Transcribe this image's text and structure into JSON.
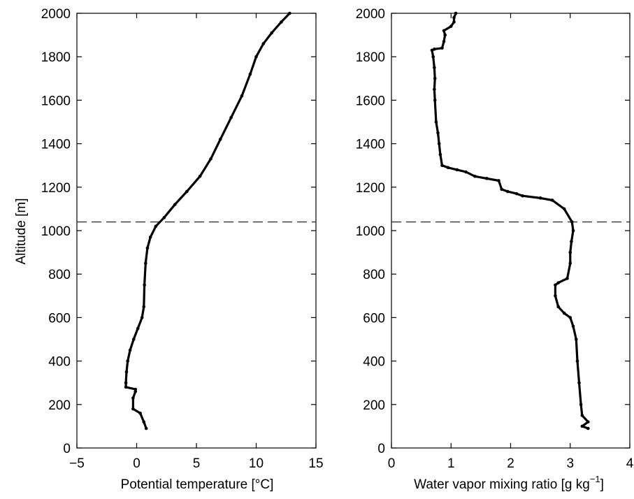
{
  "chart_data": [
    {
      "type": "line",
      "xlabel": "Potential temperature [°C]",
      "ylabel": "Altitude [m]",
      "xlim": [
        -5,
        15
      ],
      "ylim": [
        0,
        2000
      ],
      "xticks": [
        -5,
        0,
        5,
        10,
        15
      ],
      "yticks": [
        0,
        200,
        400,
        600,
        800,
        1000,
        1200,
        1400,
        1600,
        1800,
        2000
      ],
      "xtick_labels": [
        "−5",
        "0",
        "5",
        "10",
        "15"
      ],
      "ytick_labels": [
        "0",
        "200",
        "400",
        "600",
        "800",
        "1000",
        "1200",
        "1400",
        "1600",
        "1800",
        "2000"
      ],
      "reference_line_y": 1040,
      "series": [
        {
          "x": [
            0.8,
            0.6,
            0.3,
            -0.3,
            -0.3,
            -0.1,
            -0.1,
            -0.9,
            -0.9,
            -0.85,
            -0.75,
            -0.55,
            -0.25,
            0.1,
            0.45,
            0.6,
            0.65,
            0.75,
            0.9,
            1.15,
            1.6,
            2.3,
            3.2,
            4.2,
            5.3,
            6.2,
            7.0,
            7.9,
            8.8,
            9.5,
            10.0,
            10.6,
            11.3,
            12.1,
            12.8
          ],
          "y": [
            90,
            120,
            160,
            180,
            230,
            260,
            270,
            280,
            300,
            350,
            400,
            450,
            500,
            550,
            600,
            650,
            750,
            850,
            920,
            970,
            1020,
            1060,
            1120,
            1180,
            1250,
            1330,
            1420,
            1520,
            1620,
            1720,
            1800,
            1860,
            1910,
            1960,
            2000
          ]
        }
      ]
    },
    {
      "type": "scatter",
      "xlabel": "Water vapor mixing ratio [g kg",
      "xlabel_sup": "−1",
      "xlabel_end": "]",
      "xlim": [
        0,
        4
      ],
      "ylim": [
        0,
        2000
      ],
      "xticks": [
        0,
        1,
        2,
        3,
        4
      ],
      "yticks": [
        0,
        200,
        400,
        600,
        800,
        1000,
        1200,
        1400,
        1600,
        1800,
        2000
      ],
      "xtick_labels": [
        "0",
        "1",
        "2",
        "3",
        "4"
      ],
      "ytick_labels": [
        "0",
        "200",
        "400",
        "600",
        "800",
        "1000",
        "1200",
        "1400",
        "1600",
        "1800",
        "2000"
      ],
      "reference_line_y": 1040,
      "series": [
        {
          "x": [
            3.3,
            3.2,
            3.3,
            3.2,
            3.18,
            3.15,
            3.12,
            3.1,
            3.05,
            3.0,
            2.9,
            2.8,
            2.75,
            2.75,
            2.8,
            2.95,
            3.0,
            3.0,
            3.02,
            3.05,
            3.03,
            2.9,
            2.7,
            2.5,
            2.2,
            2.1,
            1.95,
            1.85,
            1.8,
            1.6,
            1.4,
            1.25,
            1.1,
            0.95,
            0.85,
            0.82,
            0.8,
            0.78,
            0.75,
            0.73,
            0.72,
            0.73,
            0.72,
            0.7,
            0.68,
            0.72,
            0.85,
            0.88,
            0.9,
            0.88,
            1.0,
            1.05,
            1.05,
            1.08
          ],
          "y": [
            90,
            100,
            120,
            150,
            200,
            300,
            400,
            500,
            560,
            600,
            620,
            650,
            700,
            750,
            760,
            780,
            850,
            900,
            950,
            1000,
            1040,
            1100,
            1140,
            1150,
            1160,
            1170,
            1180,
            1190,
            1230,
            1240,
            1250,
            1270,
            1280,
            1290,
            1300,
            1350,
            1400,
            1450,
            1500,
            1600,
            1650,
            1700,
            1750,
            1800,
            1830,
            1835,
            1840,
            1870,
            1900,
            1920,
            1940,
            1960,
            1980,
            2000
          ]
        }
      ]
    }
  ]
}
